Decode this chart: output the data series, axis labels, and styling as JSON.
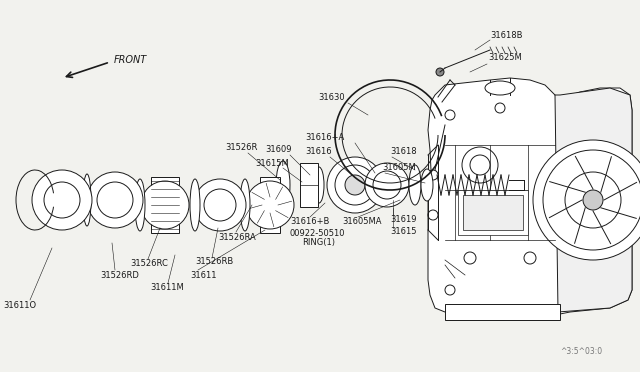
{
  "bg_color": "#f2f2ee",
  "line_color": "#1a1a1a",
  "text_color": "#1a1a1a",
  "font_size": 6.0,
  "watermark": "^3:5^03:0",
  "figsize": [
    6.4,
    3.72
  ],
  "dpi": 100,
  "xlim": [
    0,
    640
  ],
  "ylim": [
    0,
    372
  ]
}
